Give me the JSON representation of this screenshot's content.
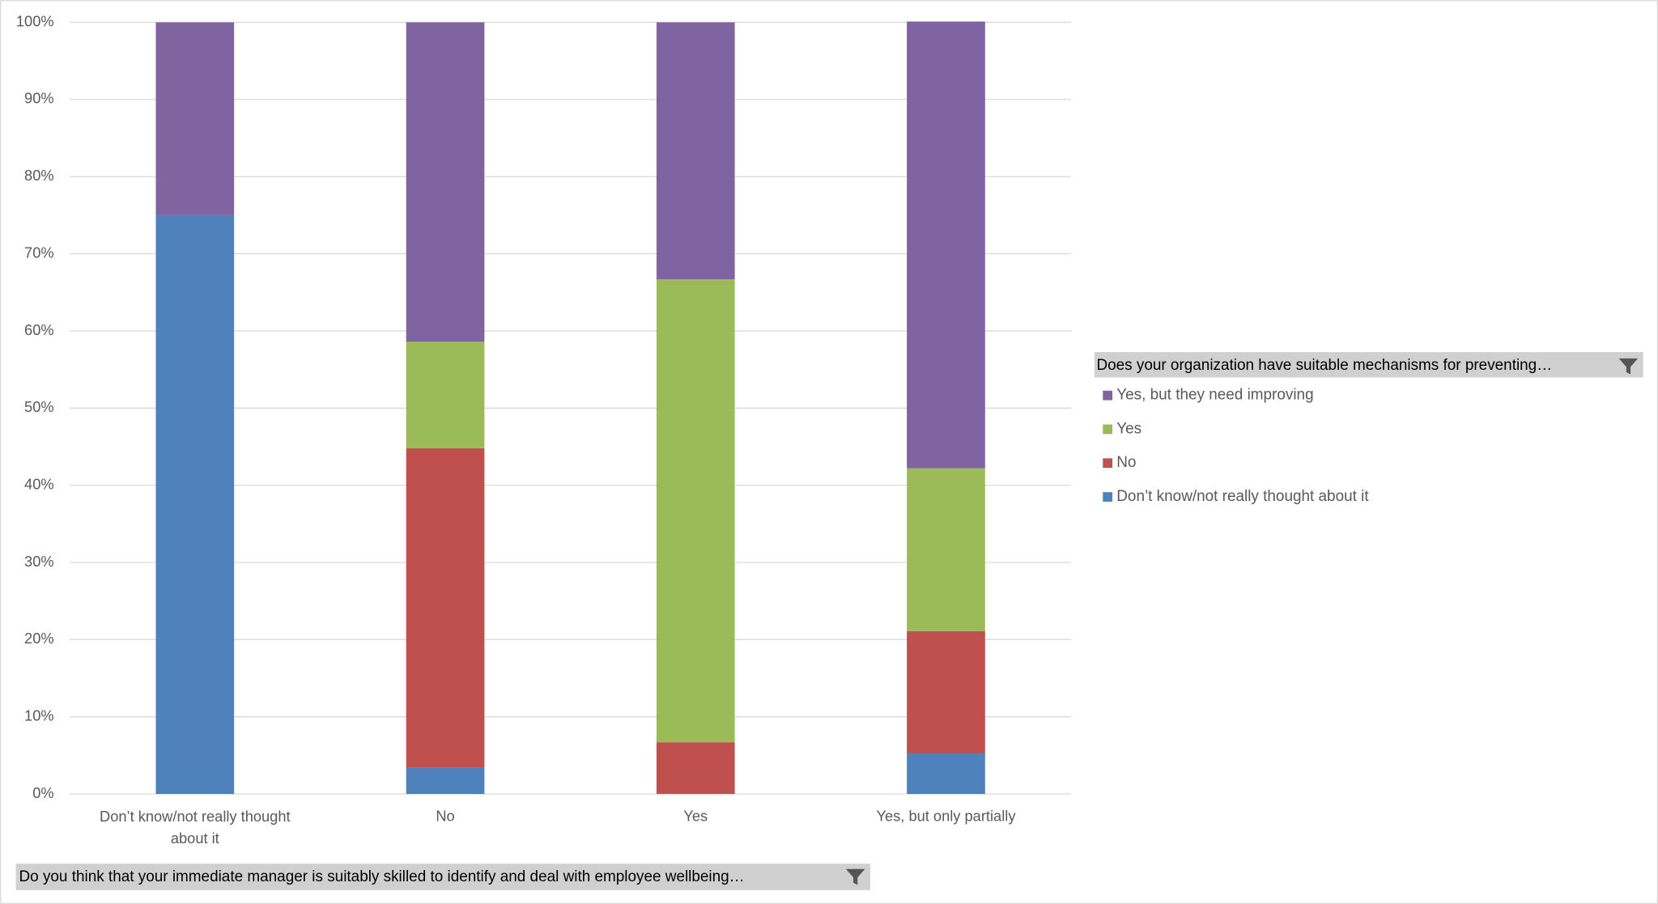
{
  "chart_data": {
    "type": "stacked_bar_100",
    "categories": [
      "Don’t know/not really thought about it",
      "No",
      "Yes",
      "Yes, but only partially"
    ],
    "series": [
      {
        "name": "Don’t know/not really thought about it",
        "color": "#4f81bd",
        "values": [
          75,
          3.4,
          0,
          5.3
        ]
      },
      {
        "name": "No",
        "color": "#c0504d",
        "values": [
          0,
          41.4,
          6.7,
          15.8
        ]
      },
      {
        "name": "Yes",
        "color": "#9bbb59",
        "values": [
          0,
          13.8,
          60,
          21.1
        ]
      },
      {
        "name": "Yes, but they need improving",
        "color": "#8064a2",
        "values": [
          25,
          41.4,
          33.3,
          57.9
        ]
      }
    ],
    "ylim": [
      0,
      100
    ],
    "yticks": [
      {
        "value": 0,
        "label": "0%"
      },
      {
        "value": 10,
        "label": "10%"
      },
      {
        "value": 20,
        "label": "20%"
      },
      {
        "value": 30,
        "label": "30%"
      },
      {
        "value": 40,
        "label": "40%"
      },
      {
        "value": 50,
        "label": "50%"
      },
      {
        "value": 60,
        "label": "60%"
      },
      {
        "value": 70,
        "label": "70%"
      },
      {
        "value": 80,
        "label": "80%"
      },
      {
        "value": 90,
        "label": "90%"
      },
      {
        "value": 100,
        "label": "100%"
      }
    ],
    "grid": true,
    "legend_title": "Does your organization have suitable mechanisms for preventing…",
    "x_field_label": "Do you think that your immediate manager is suitably skilled to identify and deal with employee wellbeing…"
  }
}
